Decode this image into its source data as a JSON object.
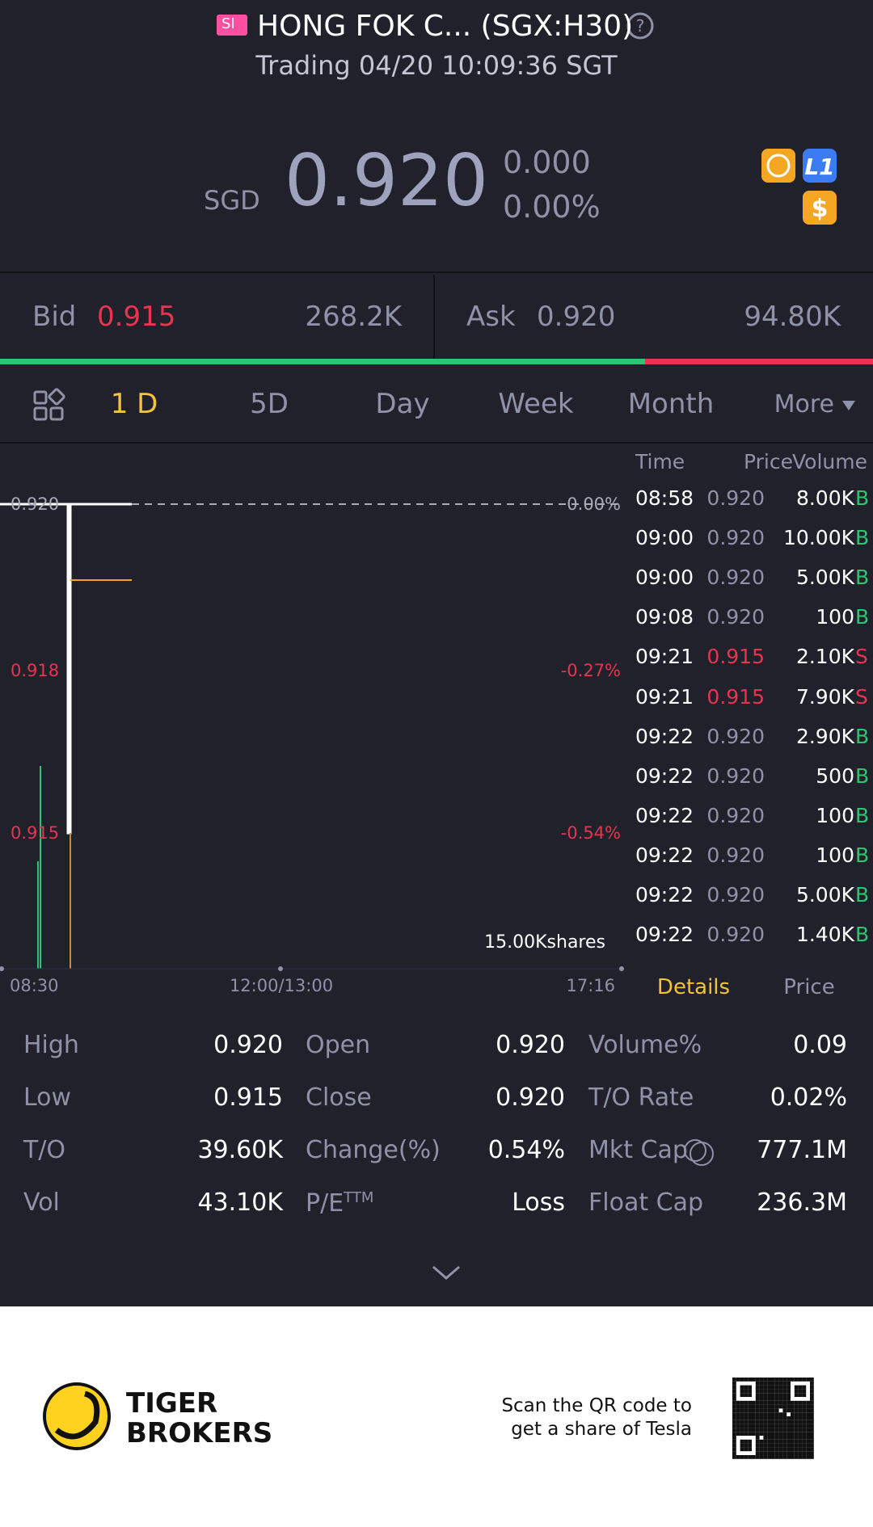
{
  "header": {
    "badge": "SI",
    "title": "HONG FOK C... (SGX:H30)",
    "status": "Trading 04/20 10:09:36 SGT"
  },
  "quote": {
    "currency": "SGD",
    "price": "0.920",
    "change": "0.000",
    "change_pct": "0.00%"
  },
  "bid": {
    "label": "Bid",
    "price": "0.915",
    "size": "268.2K"
  },
  "ask": {
    "label": "Ask",
    "price": "0.920",
    "size": "94.80K"
  },
  "tabs": [
    "1 D",
    "5D",
    "Day",
    "Week",
    "Month",
    "More"
  ],
  "chart": {
    "price_labels": [
      "0.920",
      "0.918",
      "0.915"
    ],
    "pct_labels": [
      "0.00%",
      "-0.27%",
      "-0.54%"
    ],
    "volume_label": "15.00Kshares",
    "time_labels": [
      "08:30",
      "12:00/13:00",
      "17:16"
    ]
  },
  "ticks": {
    "headers": [
      "Time",
      "Price",
      "Volume"
    ],
    "rows": [
      {
        "time": "08:58",
        "price": "0.920",
        "volume": "8.00K",
        "side": "B"
      },
      {
        "time": "09:00",
        "price": "0.920",
        "volume": "10.00K",
        "side": "B"
      },
      {
        "time": "09:00",
        "price": "0.920",
        "volume": "5.00K",
        "side": "B"
      },
      {
        "time": "09:08",
        "price": "0.920",
        "volume": "100",
        "side": "B"
      },
      {
        "time": "09:21",
        "price": "0.915",
        "volume": "2.10K",
        "side": "S"
      },
      {
        "time": "09:21",
        "price": "0.915",
        "volume": "7.90K",
        "side": "S"
      },
      {
        "time": "09:22",
        "price": "0.920",
        "volume": "2.90K",
        "side": "B"
      },
      {
        "time": "09:22",
        "price": "0.920",
        "volume": "500",
        "side": "B"
      },
      {
        "time": "09:22",
        "price": "0.920",
        "volume": "100",
        "side": "B"
      },
      {
        "time": "09:22",
        "price": "0.920",
        "volume": "100",
        "side": "B"
      },
      {
        "time": "09:22",
        "price": "0.920",
        "volume": "5.00K",
        "side": "B"
      },
      {
        "time": "09:22",
        "price": "0.920",
        "volume": "1.40K",
        "side": "B"
      }
    ]
  },
  "detail_tabs": [
    "Details",
    "Price"
  ],
  "stats": [
    [
      {
        "label": "High",
        "value": "0.920"
      },
      {
        "label": "Open",
        "value": "0.920"
      },
      {
        "label": "Volume%",
        "value": "0.09"
      }
    ],
    [
      {
        "label": "Low",
        "value": "0.915"
      },
      {
        "label": "Close",
        "value": "0.920"
      },
      {
        "label": "T/O Rate",
        "value": "0.02%"
      }
    ],
    [
      {
        "label": "T/O",
        "value": "39.60K"
      },
      {
        "label": "Change(%)",
        "value": "0.54%"
      },
      {
        "label": "Mkt Cap",
        "value": "777.1M"
      }
    ],
    [
      {
        "label": "Vol",
        "value": "43.10K"
      },
      {
        "label": "P/E",
        "sup": "TTM",
        "value": "Loss"
      },
      {
        "label": "Float Cap",
        "value": "236.3M"
      }
    ]
  ],
  "footer": {
    "brand": [
      "TIGER",
      "BROKERS"
    ],
    "promo": [
      "Scan the QR code to",
      "get a share of Tesla"
    ]
  }
}
